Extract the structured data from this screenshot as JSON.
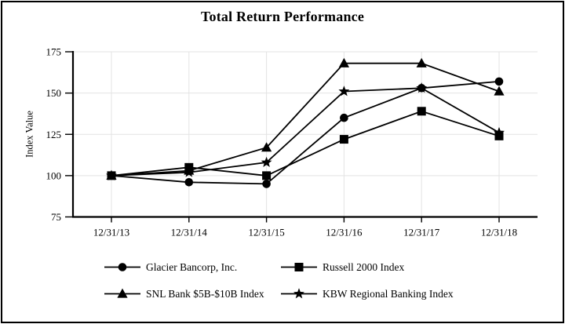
{
  "chart_data": {
    "type": "line",
    "title": "Total Return Performance",
    "xlabel": "",
    "ylabel": "Index Value",
    "categories": [
      "12/31/13",
      "12/31/14",
      "12/31/15",
      "12/31/16",
      "12/31/17",
      "12/31/18"
    ],
    "series": [
      {
        "name": "Glacier Bancorp, Inc.",
        "marker": "circle",
        "values": [
          100,
          96,
          95,
          135,
          153,
          157
        ]
      },
      {
        "name": "Russell 2000 Index",
        "marker": "square",
        "values": [
          100,
          105,
          100,
          122,
          139,
          124
        ]
      },
      {
        "name": "SNL Bank $5B-$10B Index",
        "marker": "triangle",
        "values": [
          100,
          103,
          117,
          168,
          168,
          151
        ]
      },
      {
        "name": "KBW Regional Banking Index",
        "marker": "star",
        "values": [
          100,
          102,
          108,
          151,
          153,
          126
        ]
      }
    ],
    "ylim": [
      75,
      175
    ],
    "yticks": [
      75,
      100,
      125,
      150,
      175
    ],
    "grid": true,
    "legend_position": "bottom",
    "line_color": "#000000",
    "grid_color": "#e3e3e3",
    "background": "#ffffff",
    "border_color": "#000000"
  }
}
